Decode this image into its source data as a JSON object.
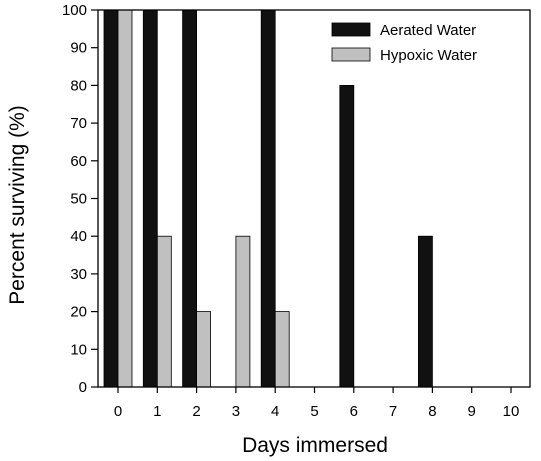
{
  "chart_data": {
    "type": "bar",
    "xlabel": "Days immersed",
    "ylabel": "Percent surviving (%)",
    "ylim": [
      0,
      100
    ],
    "yticks": [
      0,
      10,
      20,
      30,
      40,
      50,
      60,
      70,
      80,
      90,
      100
    ],
    "categories": [
      "0",
      "1",
      "2",
      "3",
      "4",
      "5",
      "6",
      "7",
      "8",
      "9",
      "10"
    ],
    "series": [
      {
        "name": "Aerated Water",
        "color": "#111111",
        "values": [
          100,
          100,
          100,
          0,
          100,
          0,
          80,
          0,
          40,
          0,
          0
        ]
      },
      {
        "name": "Hypoxic Water",
        "color": "#c0c0c0",
        "values": [
          100,
          40,
          20,
          40,
          20,
          0,
          0,
          0,
          0,
          0,
          0
        ]
      }
    ],
    "legend_position": "top-right",
    "grid": false
  }
}
